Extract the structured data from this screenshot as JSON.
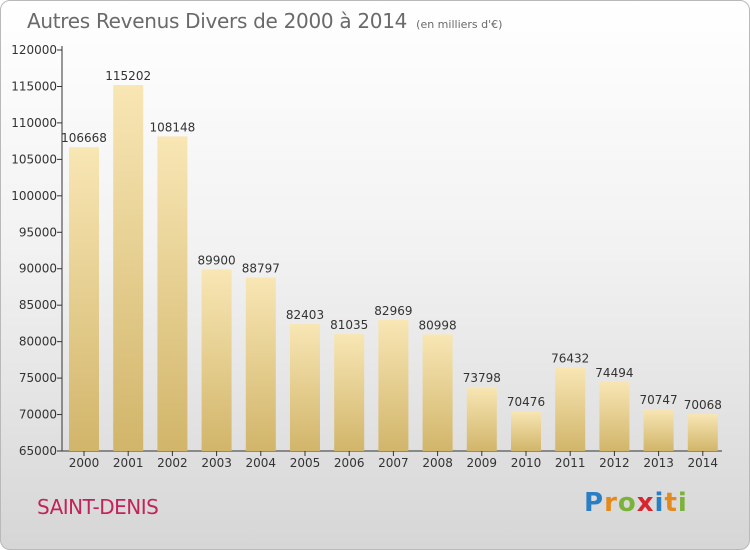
{
  "title": {
    "main": "Autres Revenus Divers de 2000 à 2014",
    "unit": "(en milliers d'€)"
  },
  "commune": "SAINT-DENIS",
  "logo": {
    "letters": [
      "P",
      "r",
      "o",
      "x",
      "i",
      "t",
      "i"
    ],
    "colors": [
      "#2a7fc4",
      "#e48a1d",
      "#7bb33a",
      "#d9262e",
      "#2a7fc4",
      "#e48a1d",
      "#7bb33a"
    ]
  },
  "colors": {
    "bar_top": "#f8e6b4",
    "bar_bottom": "#d1b56a",
    "axis": "#333333",
    "text": "#333333",
    "commune": "#c0245a"
  },
  "chart_data": {
    "type": "bar",
    "categories": [
      "2000",
      "2001",
      "2002",
      "2003",
      "2004",
      "2005",
      "2006",
      "2007",
      "2008",
      "2009",
      "2010",
      "2011",
      "2012",
      "2013",
      "2014"
    ],
    "values": [
      106668,
      115202,
      108148,
      89900,
      88797,
      82403,
      81035,
      82969,
      80998,
      73798,
      70476,
      76432,
      74494,
      70747,
      70068
    ],
    "ylim": [
      65000,
      120000
    ],
    "yticks": [
      65000,
      70000,
      75000,
      80000,
      85000,
      90000,
      95000,
      100000,
      105000,
      110000,
      115000,
      120000
    ],
    "grid": false,
    "data_labels": true
  }
}
